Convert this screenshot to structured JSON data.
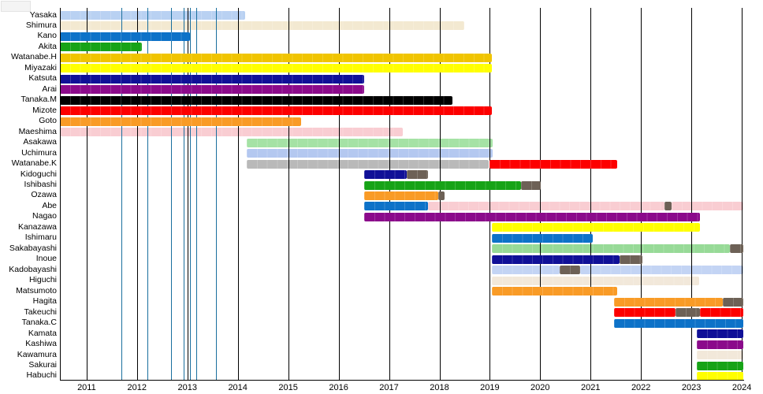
{
  "chart_data": {
    "type": "timeline-gantt",
    "title": "",
    "xlabel": "",
    "ylabel": "",
    "axis": {
      "xmin": 2010.47,
      "xmax": 2024.03,
      "tick_years": [
        2011,
        2012,
        2013,
        2014,
        2015,
        2016,
        2017,
        2018,
        2019,
        2020,
        2021,
        2022,
        2023,
        2024
      ],
      "grid": "vertical-years"
    },
    "event_lines": {
      "color": "#1a6f9e",
      "years": [
        2011.69,
        2012.21,
        2012.68,
        2012.92,
        2013.05,
        2013.18,
        2013.56
      ]
    },
    "palette": {
      "lightblue": "#b9d1f2",
      "wheat": "#f3e9d1",
      "blue": "#0d72c8",
      "green": "#17a317",
      "gold": "#f0c400",
      "yellow": "#ffff00",
      "navy": "#101097",
      "purple": "#8b0a8b",
      "black": "#000000",
      "red": "#fd0000",
      "orange": "#f99b26",
      "pink": "#f9cdd2",
      "palegreen": "#a5e2a5",
      "paleblue": "#b4c8f0",
      "silver": "#b9b9b9",
      "periwinkle": "#c3d4f4",
      "linen": "#f2e8da",
      "palegreen2": "#97da97",
      "gray": "#6d6156"
    },
    "pale_colors": [
      "lightblue",
      "wheat",
      "pink",
      "palegreen",
      "paleblue",
      "silver",
      "periwinkle",
      "linen",
      "palegreen2"
    ],
    "rows": [
      {
        "label": "Yasaka",
        "segments": [
          {
            "from": 2010.47,
            "to": 2014.15,
            "color": "lightblue"
          }
        ]
      },
      {
        "label": "Shimura",
        "segments": [
          {
            "from": 2010.47,
            "to": 2018.5,
            "color": "wheat"
          }
        ]
      },
      {
        "label": "Kano",
        "segments": [
          {
            "from": 2010.47,
            "to": 2013.05,
            "color": "blue"
          }
        ]
      },
      {
        "label": "Akita",
        "segments": [
          {
            "from": 2010.47,
            "to": 2012.1,
            "color": "green"
          }
        ]
      },
      {
        "label": "Watanabe.H",
        "segments": [
          {
            "from": 2010.47,
            "to": 2019.04,
            "color": "gold"
          }
        ]
      },
      {
        "label": "Miyazaki",
        "segments": [
          {
            "from": 2010.47,
            "to": 2019.04,
            "color": "yellow"
          }
        ]
      },
      {
        "label": "Katsuta",
        "segments": [
          {
            "from": 2010.47,
            "to": 2016.5,
            "color": "navy"
          }
        ]
      },
      {
        "label": "Arai",
        "segments": [
          {
            "from": 2010.47,
            "to": 2016.5,
            "color": "purple"
          }
        ]
      },
      {
        "label": "Tanaka.M",
        "segments": [
          {
            "from": 2010.47,
            "to": 2018.26,
            "color": "black"
          }
        ]
      },
      {
        "label": "Mizote",
        "segments": [
          {
            "from": 2010.47,
            "to": 2019.04,
            "color": "red"
          }
        ]
      },
      {
        "label": "Goto",
        "segments": [
          {
            "from": 2010.47,
            "to": 2015.25,
            "color": "orange"
          }
        ]
      },
      {
        "label": "Maeshima",
        "segments": [
          {
            "from": 2010.47,
            "to": 2017.27,
            "color": "pink"
          }
        ]
      },
      {
        "label": "Asakawa",
        "segments": [
          {
            "from": 2014.17,
            "to": 2019.05,
            "color": "palegreen"
          }
        ]
      },
      {
        "label": "Uchimura",
        "segments": [
          {
            "from": 2014.17,
            "to": 2019.05,
            "color": "paleblue"
          }
        ]
      },
      {
        "label": "Watanabe.K",
        "segments": [
          {
            "from": 2014.17,
            "to": 2018.98,
            "color": "silver"
          },
          {
            "from": 2019.0,
            "to": 2021.53,
            "color": "red"
          }
        ]
      },
      {
        "label": "Kidoguchi",
        "segments": [
          {
            "from": 2016.5,
            "to": 2017.35,
            "color": "navy"
          },
          {
            "from": 2017.35,
            "to": 2017.77,
            "color": "gray"
          }
        ]
      },
      {
        "label": "Ishibashi",
        "segments": [
          {
            "from": 2016.5,
            "to": 2019.62,
            "color": "green"
          },
          {
            "from": 2019.62,
            "to": 2020.01,
            "color": "gray"
          }
        ]
      },
      {
        "label": "Ozawa",
        "segments": [
          {
            "from": 2016.5,
            "to": 2017.98,
            "color": "orange"
          },
          {
            "from": 2017.98,
            "to": 2018.11,
            "color": "gray"
          }
        ]
      },
      {
        "label": "Abe",
        "segments": [
          {
            "from": 2016.5,
            "to": 2017.77,
            "color": "blue"
          },
          {
            "from": 2017.77,
            "to": 2022.46,
            "color": "pink"
          },
          {
            "from": 2022.46,
            "to": 2022.61,
            "color": "gray"
          },
          {
            "from": 2022.61,
            "to": 2024.03,
            "color": "pink"
          }
        ]
      },
      {
        "label": "Nagao",
        "segments": [
          {
            "from": 2016.5,
            "to": 2023.17,
            "color": "purple"
          }
        ]
      },
      {
        "label": "Kanazawa",
        "segments": [
          {
            "from": 2019.04,
            "to": 2023.17,
            "color": "yellow"
          }
        ]
      },
      {
        "label": "Ishimaru",
        "segments": [
          {
            "from": 2019.04,
            "to": 2021.04,
            "color": "blue"
          }
        ]
      },
      {
        "label": "Sakabayashi",
        "segments": [
          {
            "from": 2019.04,
            "to": 2023.76,
            "color": "palegreen2"
          },
          {
            "from": 2023.76,
            "to": 2024.03,
            "color": "gray"
          }
        ]
      },
      {
        "label": "Inoue",
        "segments": [
          {
            "from": 2019.04,
            "to": 2021.57,
            "color": "navy"
          },
          {
            "from": 2021.57,
            "to": 2022.03,
            "color": "gray"
          }
        ]
      },
      {
        "label": "Kadobayashi",
        "segments": [
          {
            "from": 2019.04,
            "to": 2020.38,
            "color": "periwinkle"
          },
          {
            "from": 2020.38,
            "to": 2020.79,
            "color": "gray"
          },
          {
            "from": 2020.79,
            "to": 2024.03,
            "color": "periwinkle"
          }
        ]
      },
      {
        "label": "Higuchi",
        "segments": [
          {
            "from": 2019.04,
            "to": 2023.15,
            "color": "linen"
          }
        ]
      },
      {
        "label": "Matsumoto",
        "segments": [
          {
            "from": 2019.04,
            "to": 2021.53,
            "color": "orange"
          }
        ]
      },
      {
        "label": "Hagita",
        "segments": [
          {
            "from": 2021.46,
            "to": 2023.62,
            "color": "orange"
          },
          {
            "from": 2023.62,
            "to": 2024.03,
            "color": "gray"
          }
        ]
      },
      {
        "label": "Takeuchi",
        "segments": [
          {
            "from": 2021.46,
            "to": 2022.68,
            "color": "red"
          },
          {
            "from": 2022.68,
            "to": 2023.17,
            "color": "gray"
          },
          {
            "from": 2023.17,
            "to": 2024.03,
            "color": "red"
          }
        ]
      },
      {
        "label": "Tanaka.C",
        "segments": [
          {
            "from": 2021.46,
            "to": 2024.03,
            "color": "blue"
          }
        ]
      },
      {
        "label": "Kamata",
        "segments": [
          {
            "from": 2023.1,
            "to": 2024.03,
            "color": "navy"
          }
        ]
      },
      {
        "label": "Kashiwa",
        "segments": [
          {
            "from": 2023.1,
            "to": 2024.03,
            "color": "purple"
          }
        ]
      },
      {
        "label": "Kawamura",
        "segments": [
          {
            "from": 2023.1,
            "to": 2024.03,
            "color": "linen"
          }
        ]
      },
      {
        "label": "Sakurai",
        "segments": [
          {
            "from": 2023.1,
            "to": 2024.03,
            "color": "green"
          }
        ]
      },
      {
        "label": "Habuchi",
        "segments": [
          {
            "from": 2023.1,
            "to": 2024.03,
            "color": "yellow"
          }
        ]
      }
    ]
  }
}
